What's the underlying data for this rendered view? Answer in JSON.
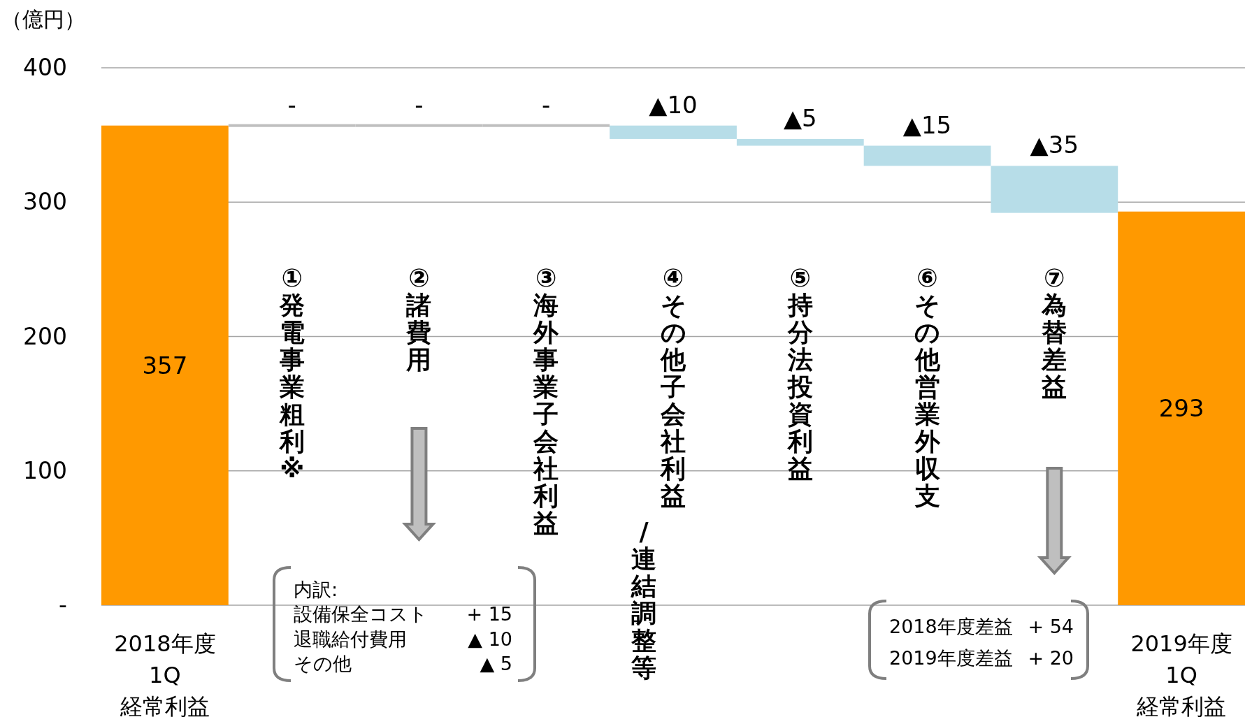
{
  "chart_data": {
    "type": "bar",
    "ylabel": "（億円）",
    "categories": [
      "2018年度\n1Q\n経常利益",
      "①発電事業粗利※",
      "②諸費用",
      "③海外事業子会社利益",
      "④その他子会社利益\n/連結調整等",
      "⑤持分法投資利益",
      "⑥その他営業外収支",
      "⑦為替差益",
      "2019年度\n1Q\n経常利益"
    ],
    "values": [
      357,
      0,
      0,
      0,
      -10,
      -5,
      -15,
      -35,
      293
    ],
    "base": [
      0,
      357,
      357,
      357,
      357,
      347,
      342,
      327,
      0
    ],
    "colors": [
      "#ff9900",
      "#bfbfbf",
      "#bfbfbf",
      "#bfbfbf",
      "#b7dde8",
      "#b7dde8",
      "#b7dde8",
      "#b7dde8",
      "#ff9900"
    ],
    "value_labels": [
      "357",
      "-",
      "-",
      "-",
      "▲10",
      "▲5",
      "▲15",
      "▲35",
      "293"
    ],
    "ylim": [
      0,
      400
    ],
    "yticks": [
      {
        "value": 0,
        "label": "-"
      },
      100,
      200,
      300,
      400
    ],
    "grid": "y",
    "annotations": [
      "内訳:\n設備保全コスト\t+ 15\n退職給付費用\t▲ 10\nその他\t▲ 5",
      "2018年度差益\t+ 54\n2019年度差益\t+ 20"
    ]
  }
}
